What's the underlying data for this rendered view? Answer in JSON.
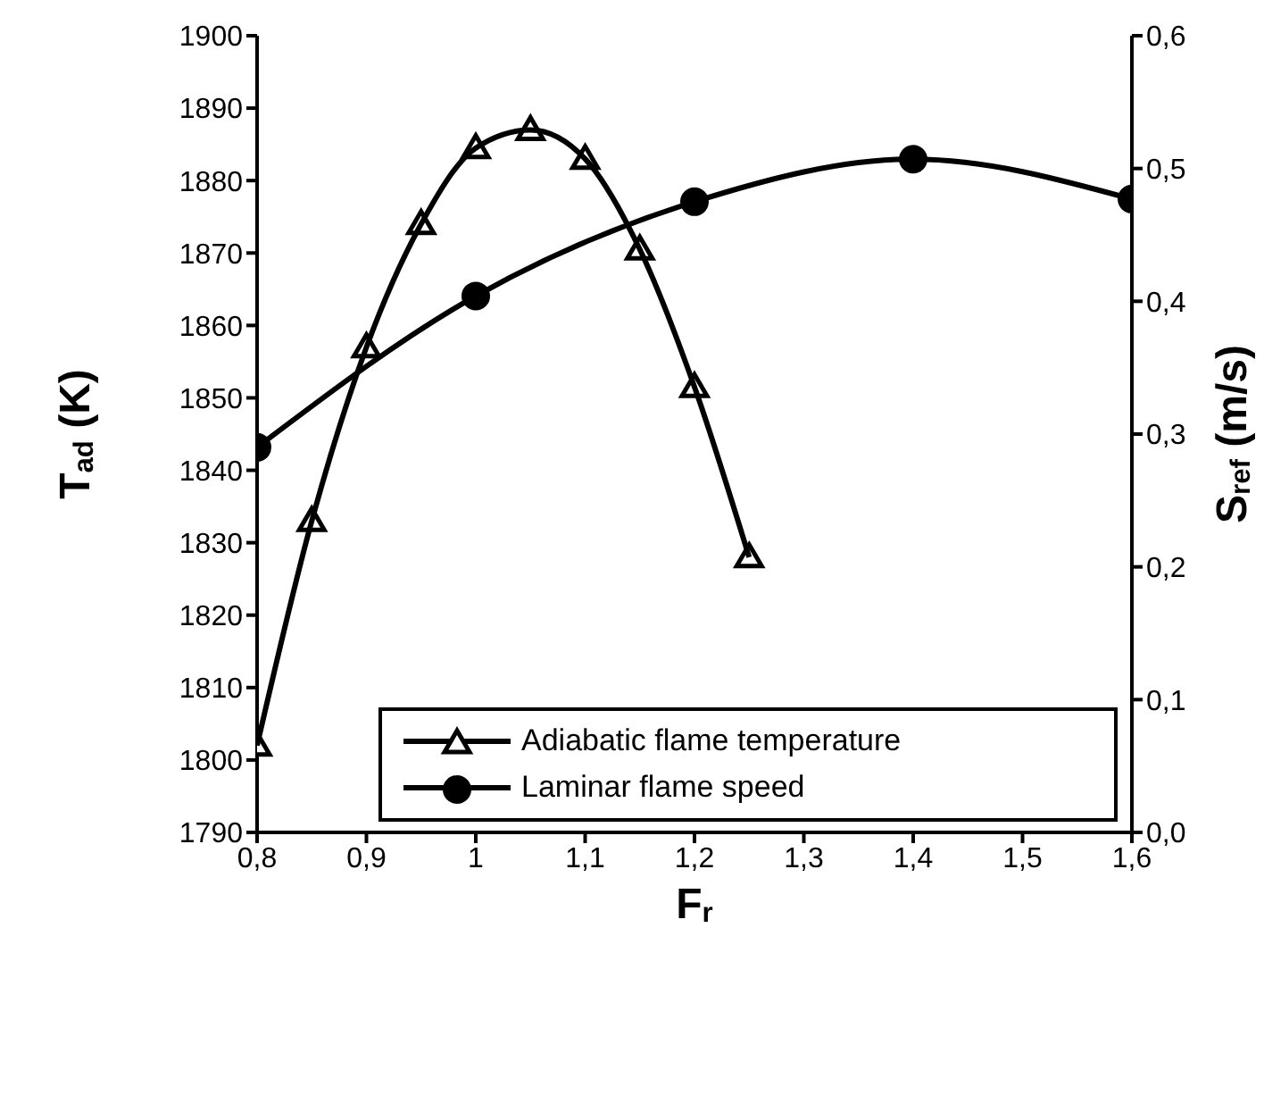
{
  "chart_data": {
    "type": "line",
    "xlabel": "F$_{r}$",
    "ylabel": "T$_{ad}$ (K)",
    "y2label": "S$_{ref}$ (m/s)",
    "xlim": [
      0.8,
      1.6
    ],
    "xticks": [
      {
        "value": 0.8,
        "label": "0,8"
      },
      {
        "value": 0.9,
        "label": "0,9"
      },
      {
        "value": 1,
        "label": "1"
      },
      {
        "value": 1.1,
        "label": "1,1"
      },
      {
        "value": 1.2,
        "label": "1,2"
      },
      {
        "value": 1.3,
        "label": "1,3"
      },
      {
        "value": 1.4,
        "label": "1,4"
      },
      {
        "value": 1.5,
        "label": "1,5"
      },
      {
        "value": 1.6,
        "label": "1,6"
      }
    ],
    "ylim": [
      1790,
      1900
    ],
    "yticks": [
      1790,
      1800,
      1810,
      1820,
      1830,
      1840,
      1850,
      1860,
      1870,
      1880,
      1890,
      1900
    ],
    "y2lim": [
      0,
      0.6
    ],
    "y2ticks": [
      {
        "value": 0,
        "label": "0,0"
      },
      {
        "value": 0.1,
        "label": "0,1"
      },
      {
        "value": 0.2,
        "label": "0,2"
      },
      {
        "value": 0.3,
        "label": "0,3"
      },
      {
        "value": 0.4,
        "label": "0,4"
      },
      {
        "value": 0.5,
        "label": "0,5"
      },
      {
        "value": 0.6,
        "label": "0,6"
      }
    ],
    "series": [
      {
        "name": "Adiabatic flame temperature",
        "color": "#000000",
        "marker": "triangle",
        "x": [
          0.8,
          0.85,
          0.9,
          0.95,
          1.0,
          1.05,
          1.1,
          1.15,
          1.2,
          1.25
        ],
        "values": [
          1802,
          1833,
          1857,
          1874,
          1884.5,
          1887,
          1883,
          1870.5,
          1851.5,
          1828
        ]
      },
      {
        "name": "Laminar flame speed",
        "color": "#000000",
        "marker": "circle",
        "axis": "y2",
        "x": [
          0.8,
          1.0,
          1.2,
          1.4,
          1.6
        ],
        "values": [
          0.29,
          0.404,
          0.475,
          0.507,
          0.477
        ]
      }
    ],
    "line_style": "solid",
    "grid": false,
    "legend": "bottom right"
  }
}
